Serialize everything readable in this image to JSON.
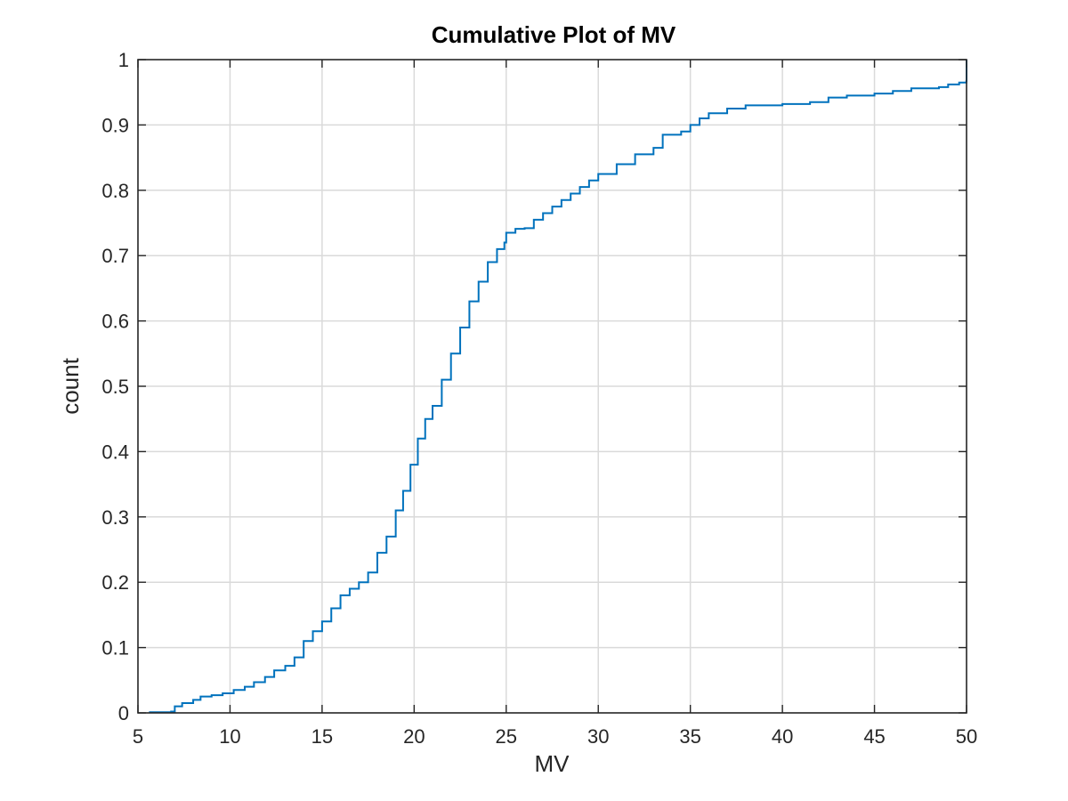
{
  "chart_data": {
    "type": "line",
    "title": "Cumulative Plot of MV",
    "xlabel": "MV",
    "ylabel": "count",
    "xlim": [
      5,
      50
    ],
    "ylim": [
      0,
      1
    ],
    "xticks": [
      5,
      10,
      15,
      20,
      25,
      30,
      35,
      40,
      45,
      50
    ],
    "yticks": [
      0,
      0.1,
      0.2,
      0.3,
      0.4,
      0.5,
      0.6,
      0.7,
      0.8,
      0.9,
      1
    ],
    "xtick_labels": [
      "5",
      "10",
      "15",
      "20",
      "25",
      "30",
      "35",
      "40",
      "45",
      "50"
    ],
    "ytick_labels": [
      "0",
      "0.1",
      "0.2",
      "0.3",
      "0.4",
      "0.5",
      "0.6",
      "0.7",
      "0.8",
      "0.9",
      "1"
    ],
    "grid": true,
    "step": true,
    "series_color": "#0072bd",
    "series": [
      {
        "x": [
          5.6,
          6.8,
          7.0,
          7.4,
          8.0,
          8.4,
          9.0,
          9.6,
          10.2,
          10.8,
          11.3,
          11.9,
          12.4,
          13.0,
          13.5,
          14.0,
          14.5,
          15.0,
          15.5,
          16.0,
          16.5,
          17.0,
          17.5,
          18.0,
          18.5,
          19.0,
          19.4,
          19.8,
          20.2,
          20.6,
          21.0,
          21.5,
          22.0,
          22.5,
          23.0,
          23.5,
          24.0,
          24.5,
          24.9,
          25.0,
          25.5,
          26.0,
          26.5,
          27.0,
          27.5,
          28.0,
          28.5,
          29.0,
          29.5,
          30.0,
          31.0,
          32.0,
          33.0,
          33.5,
          34.5,
          35.0,
          35.5,
          36.0,
          37.0,
          38.0,
          40.0,
          41.5,
          42.5,
          43.5,
          45.0,
          46.0,
          47.0,
          48.5,
          49.0,
          49.6,
          49.99,
          50.0
        ],
        "y": [
          0.001,
          0.002,
          0.01,
          0.015,
          0.02,
          0.025,
          0.027,
          0.03,
          0.035,
          0.04,
          0.047,
          0.055,
          0.065,
          0.072,
          0.085,
          0.11,
          0.125,
          0.14,
          0.16,
          0.18,
          0.19,
          0.2,
          0.215,
          0.245,
          0.27,
          0.31,
          0.34,
          0.38,
          0.42,
          0.45,
          0.47,
          0.51,
          0.55,
          0.59,
          0.63,
          0.66,
          0.69,
          0.71,
          0.72,
          0.735,
          0.741,
          0.742,
          0.755,
          0.765,
          0.775,
          0.785,
          0.795,
          0.805,
          0.815,
          0.825,
          0.84,
          0.855,
          0.865,
          0.885,
          0.89,
          0.9,
          0.91,
          0.918,
          0.925,
          0.93,
          0.932,
          0.935,
          0.942,
          0.945,
          0.948,
          0.952,
          0.956,
          0.958,
          0.962,
          0.965,
          0.967,
          1.0
        ]
      }
    ]
  }
}
